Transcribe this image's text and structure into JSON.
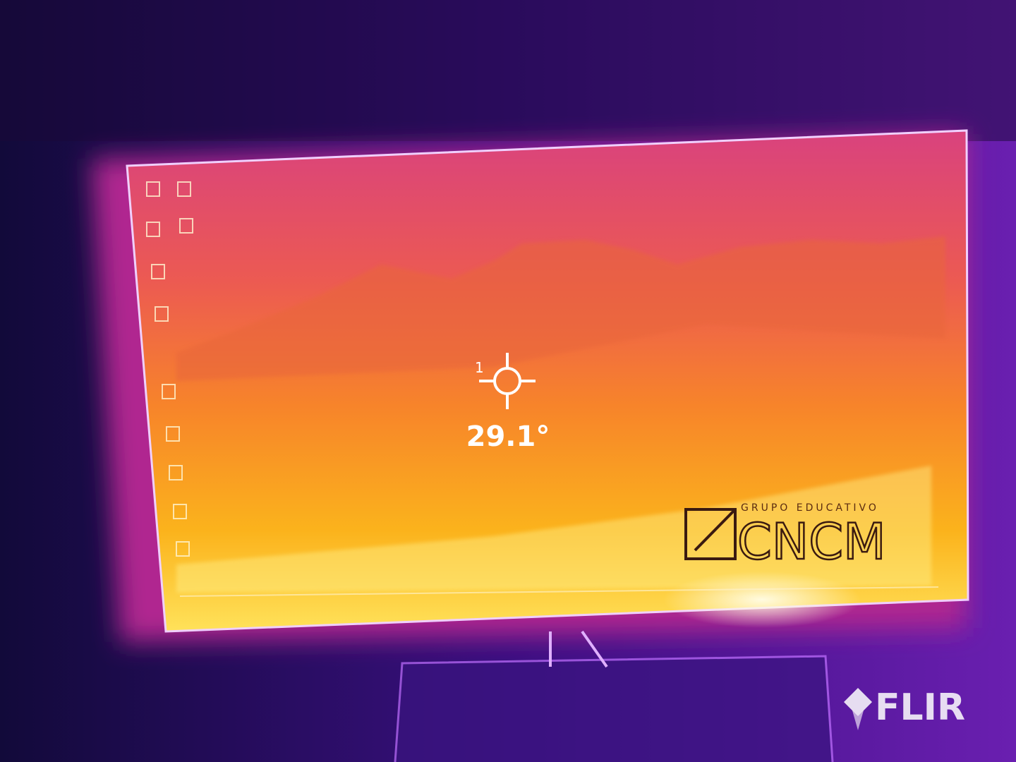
{
  "overlay": {
    "spot_label": "1",
    "temperature": "29.1°"
  },
  "wallpaper_logo": {
    "subtitle": "GRUPO EDUCATIVO",
    "name": "CNCM"
  },
  "brand": "FLIR"
}
